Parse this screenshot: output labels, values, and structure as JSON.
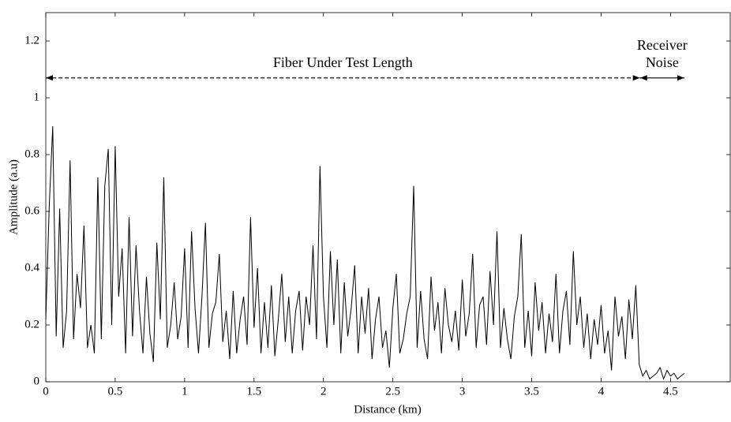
{
  "chart_data": {
    "type": "line",
    "xlabel": "Distance (km)",
    "ylabel": "Amplitude (a.u)",
    "xlim": [
      0,
      4.93
    ],
    "ylim": [
      0,
      1.3
    ],
    "xticks": [
      0,
      0.5,
      1,
      1.5,
      2,
      2.5,
      3,
      3.5,
      4,
      4.5
    ],
    "yticks": [
      0,
      0.2,
      0.4,
      0.6,
      0.8,
      1,
      1.2
    ],
    "color": "#000000",
    "x": [
      0,
      0.025,
      0.05,
      0.075,
      0.1,
      0.125,
      0.15,
      0.175,
      0.2,
      0.225,
      0.25,
      0.275,
      0.3,
      0.325,
      0.35,
      0.375,
      0.4,
      0.425,
      0.45,
      0.475,
      0.5,
      0.525,
      0.55,
      0.575,
      0.6,
      0.625,
      0.65,
      0.675,
      0.7,
      0.725,
      0.75,
      0.775,
      0.8,
      0.825,
      0.85,
      0.875,
      0.9,
      0.925,
      0.95,
      0.975,
      1,
      1.025,
      1.05,
      1.075,
      1.1,
      1.125,
      1.15,
      1.175,
      1.2,
      1.225,
      1.25,
      1.275,
      1.3,
      1.325,
      1.35,
      1.375,
      1.4,
      1.425,
      1.45,
      1.475,
      1.5,
      1.525,
      1.55,
      1.575,
      1.6,
      1.625,
      1.65,
      1.675,
      1.7,
      1.725,
      1.75,
      1.775,
      1.8,
      1.825,
      1.85,
      1.875,
      1.9,
      1.925,
      1.95,
      1.975,
      2,
      2.025,
      2.05,
      2.075,
      2.1,
      2.125,
      2.15,
      2.175,
      2.2,
      2.225,
      2.25,
      2.275,
      2.3,
      2.325,
      2.35,
      2.375,
      2.4,
      2.425,
      2.45,
      2.475,
      2.5,
      2.525,
      2.55,
      2.575,
      2.6,
      2.625,
      2.65,
      2.675,
      2.7,
      2.725,
      2.75,
      2.775,
      2.8,
      2.825,
      2.85,
      2.875,
      2.9,
      2.925,
      2.95,
      2.975,
      3,
      3.025,
      3.05,
      3.075,
      3.1,
      3.125,
      3.15,
      3.175,
      3.2,
      3.225,
      3.25,
      3.275,
      3.3,
      3.325,
      3.35,
      3.375,
      3.4,
      3.425,
      3.45,
      3.475,
      3.5,
      3.525,
      3.55,
      3.575,
      3.6,
      3.625,
      3.65,
      3.675,
      3.7,
      3.725,
      3.75,
      3.775,
      3.8,
      3.825,
      3.85,
      3.875,
      3.9,
      3.925,
      3.95,
      3.975,
      4,
      4.025,
      4.05,
      4.075,
      4.1,
      4.125,
      4.15,
      4.175,
      4.2,
      4.225,
      4.25,
      4.275,
      4.3,
      4.325,
      4.35,
      4.375,
      4.4,
      4.425,
      4.45,
      4.475,
      4.5,
      4.525,
      4.55,
      4.575,
      4.6
    ],
    "values": [
      0.22,
      0.62,
      0.9,
      0.16,
      0.61,
      0.12,
      0.25,
      0.78,
      0.15,
      0.38,
      0.26,
      0.55,
      0.12,
      0.2,
      0.1,
      0.72,
      0.15,
      0.69,
      0.82,
      0.2,
      0.83,
      0.3,
      0.47,
      0.1,
      0.58,
      0.16,
      0.48,
      0.25,
      0.1,
      0.37,
      0.17,
      0.07,
      0.49,
      0.22,
      0.72,
      0.12,
      0.2,
      0.35,
      0.15,
      0.23,
      0.47,
      0.12,
      0.53,
      0.26,
      0.1,
      0.3,
      0.56,
      0.12,
      0.24,
      0.28,
      0.45,
      0.14,
      0.25,
      0.08,
      0.32,
      0.1,
      0.22,
      0.3,
      0.13,
      0.58,
      0.19,
      0.4,
      0.1,
      0.28,
      0.12,
      0.34,
      0.09,
      0.22,
      0.38,
      0.14,
      0.3,
      0.1,
      0.25,
      0.32,
      0.11,
      0.3,
      0.2,
      0.48,
      0.15,
      0.76,
      0.3,
      0.12,
      0.46,
      0.2,
      0.43,
      0.1,
      0.35,
      0.16,
      0.26,
      0.41,
      0.1,
      0.3,
      0.17,
      0.33,
      0.08,
      0.22,
      0.3,
      0.12,
      0.18,
      0.05,
      0.26,
      0.38,
      0.1,
      0.15,
      0.24,
      0.3,
      0.69,
      0.12,
      0.32,
      0.15,
      0.08,
      0.37,
      0.18,
      0.28,
      0.1,
      0.33,
      0.2,
      0.14,
      0.25,
      0.11,
      0.36,
      0.16,
      0.24,
      0.45,
      0.12,
      0.27,
      0.3,
      0.13,
      0.39,
      0.2,
      0.53,
      0.12,
      0.26,
      0.15,
      0.08,
      0.23,
      0.3,
      0.52,
      0.12,
      0.25,
      0.09,
      0.35,
      0.18,
      0.28,
      0.1,
      0.24,
      0.14,
      0.38,
      0.1,
      0.25,
      0.32,
      0.13,
      0.46,
      0.2,
      0.3,
      0.12,
      0.24,
      0.08,
      0.22,
      0.13,
      0.27,
      0.1,
      0.18,
      0.04,
      0.3,
      0.16,
      0.23,
      0.08,
      0.29,
      0.15,
      0.34,
      0.06,
      0.02,
      0.04,
      0.01,
      0.02,
      0.03,
      0.05,
      0.01,
      0.04,
      0.02,
      0.03,
      0.01,
      0.02,
      0.03
    ],
    "annotations": [
      {
        "lines": [
          "Fiber Under Test Length"
        ],
        "x_start": 0,
        "x_end": 4.28,
        "y": 1.07,
        "dashed": true
      },
      {
        "lines": [
          "Receiver",
          "Noise"
        ],
        "x_start": 4.28,
        "x_end": 4.6,
        "y": 1.07,
        "dashed": false
      }
    ]
  }
}
